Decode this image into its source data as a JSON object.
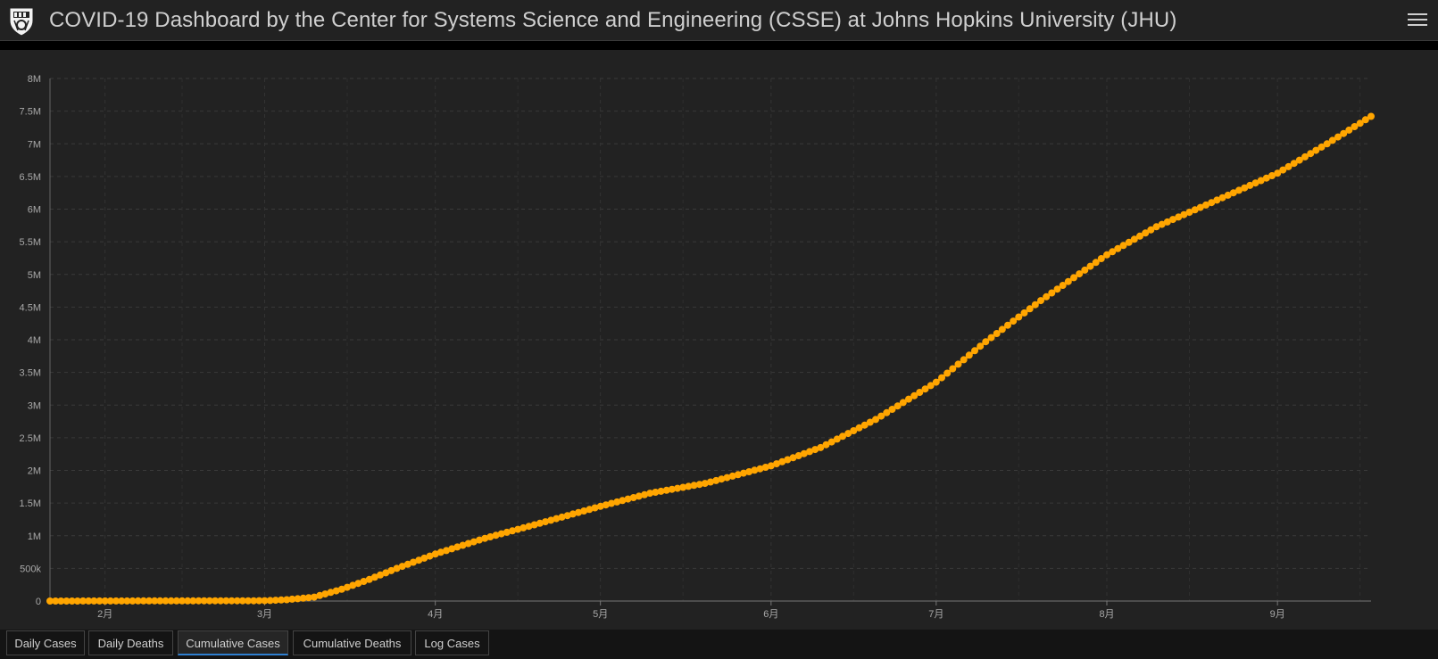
{
  "header": {
    "title": "COVID-19 Dashboard by the Center for Systems Science and Engineering (CSSE) at Johns Hopkins University (JHU)"
  },
  "tabs": [
    {
      "label": "Daily Cases",
      "active": false
    },
    {
      "label": "Daily Deaths",
      "active": false
    },
    {
      "label": "Cumulative Cases",
      "active": true
    },
    {
      "label": "Cumulative Deaths",
      "active": false
    },
    {
      "label": "Log Cases",
      "active": false
    }
  ],
  "colors": {
    "series": "#ffa500",
    "background": "#222222",
    "active_tab_underline": "#2f7fd0"
  },
  "chart_data": {
    "type": "line",
    "xlabel": "",
    "ylabel": "",
    "x_range": [
      "2020-01-22",
      "2020-09-18"
    ],
    "ylim": [
      0,
      8000000
    ],
    "y_ticks": [
      {
        "value": 0,
        "label": "0"
      },
      {
        "value": 500000,
        "label": "500k"
      },
      {
        "value": 1000000,
        "label": "1M"
      },
      {
        "value": 1500000,
        "label": "1.5M"
      },
      {
        "value": 2000000,
        "label": "2M"
      },
      {
        "value": 2500000,
        "label": "2.5M"
      },
      {
        "value": 3000000,
        "label": "3M"
      },
      {
        "value": 3500000,
        "label": "3.5M"
      },
      {
        "value": 4000000,
        "label": "4M"
      },
      {
        "value": 4500000,
        "label": "4.5M"
      },
      {
        "value": 5000000,
        "label": "5M"
      },
      {
        "value": 5500000,
        "label": "5.5M"
      },
      {
        "value": 6000000,
        "label": "6M"
      },
      {
        "value": 6500000,
        "label": "6.5M"
      },
      {
        "value": 7000000,
        "label": "7M"
      },
      {
        "value": 7500000,
        "label": "7.5M"
      },
      {
        "value": 8000000,
        "label": "8M"
      }
    ],
    "x_ticks": [
      {
        "date": "2020-02-01",
        "label": "2月"
      },
      {
        "date": "2020-03-01",
        "label": "3月"
      },
      {
        "date": "2020-04-01",
        "label": "4月"
      },
      {
        "date": "2020-05-01",
        "label": "5月"
      },
      {
        "date": "2020-06-01",
        "label": "6月"
      },
      {
        "date": "2020-07-01",
        "label": "7月"
      },
      {
        "date": "2020-08-01",
        "label": "8月"
      },
      {
        "date": "2020-09-01",
        "label": "9月"
      }
    ],
    "grid": true,
    "legend": "none",
    "series": [
      {
        "points": [
          [
            "2020-01-22",
            0
          ],
          [
            "2020-03-01",
            5000
          ],
          [
            "2020-03-05",
            20000
          ],
          [
            "2020-03-10",
            60000
          ],
          [
            "2020-03-15",
            180000
          ],
          [
            "2020-03-20",
            330000
          ],
          [
            "2020-03-25",
            500000
          ],
          [
            "2020-04-01",
            720000
          ],
          [
            "2020-04-10",
            960000
          ],
          [
            "2020-04-20",
            1190000
          ],
          [
            "2020-05-01",
            1450000
          ],
          [
            "2020-05-10",
            1650000
          ],
          [
            "2020-05-20",
            1800000
          ],
          [
            "2020-06-01",
            2070000
          ],
          [
            "2020-06-10",
            2350000
          ],
          [
            "2020-06-20",
            2780000
          ],
          [
            "2020-07-01",
            3350000
          ],
          [
            "2020-07-10",
            3970000
          ],
          [
            "2020-07-20",
            4600000
          ],
          [
            "2020-08-01",
            5300000
          ],
          [
            "2020-08-10",
            5730000
          ],
          [
            "2020-08-20",
            6100000
          ],
          [
            "2020-09-01",
            6550000
          ],
          [
            "2020-09-10",
            7000000
          ],
          [
            "2020-09-18",
            7420000
          ]
        ]
      }
    ]
  }
}
